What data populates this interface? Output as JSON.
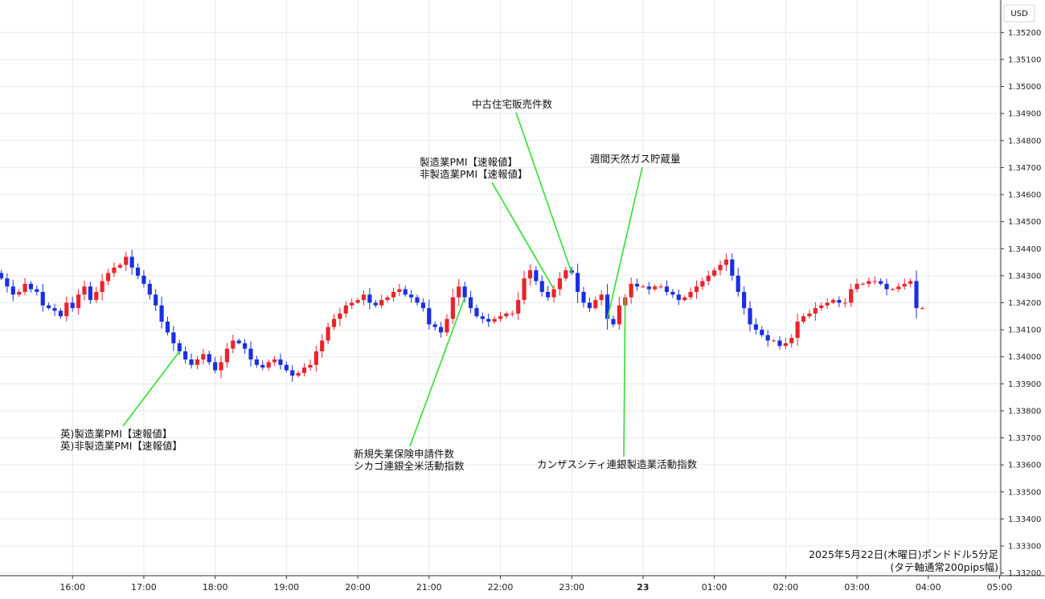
{
  "chart_data": {
    "type": "candlestick",
    "currency": "USD",
    "ylim": [
      1.3319,
      1.3532
    ],
    "y_ticks": [
      "1.35200",
      "1.35100",
      "1.35000",
      "1.34900",
      "1.34800",
      "1.34700",
      "1.34600",
      "1.34500",
      "1.34400",
      "1.34300",
      "1.34200",
      "1.34100",
      "1.34000",
      "1.33900",
      "1.33800",
      "1.33700",
      "1.33600",
      "1.33500",
      "1.33400",
      "1.33300",
      "1.33200"
    ],
    "x_ticks": [
      {
        "label": "16:00",
        "minute": 960
      },
      {
        "label": "17:00",
        "minute": 1020
      },
      {
        "label": "18:00",
        "minute": 1080
      },
      {
        "label": "19:00",
        "minute": 1140
      },
      {
        "label": "20:00",
        "minute": 1200
      },
      {
        "label": "21:00",
        "minute": 1260
      },
      {
        "label": "22:00",
        "minute": 1320
      },
      {
        "label": "23:00",
        "minute": 1380
      },
      {
        "label": "23",
        "minute": 1440
      },
      {
        "label": "01:00",
        "minute": 1500
      },
      {
        "label": "02:00",
        "minute": 1560
      },
      {
        "label": "03:00",
        "minute": 1620
      },
      {
        "label": "04:00",
        "minute": 1680
      },
      {
        "label": "05:00",
        "minute": 1740
      }
    ],
    "x_range_minutes": [
      899,
      1741
    ],
    "bar_interval_minutes": 5,
    "start_minute": 900,
    "close_series": [
      1.3429,
      1.3426,
      1.3423,
      1.3424,
      1.3427,
      1.3425,
      1.3424,
      1.3419,
      1.3418,
      1.3417,
      1.3415,
      1.342,
      1.3418,
      1.3423,
      1.3426,
      1.3421,
      1.3424,
      1.3428,
      1.3431,
      1.3433,
      1.3434,
      1.3437,
      1.3433,
      1.343,
      1.3427,
      1.3423,
      1.3419,
      1.3413,
      1.3409,
      1.3405,
      1.3402,
      1.3399,
      1.3397,
      1.3399,
      1.3401,
      1.3398,
      1.3395,
      1.3398,
      1.3403,
      1.3406,
      1.3405,
      1.3403,
      1.3399,
      1.3397,
      1.3396,
      1.3398,
      1.3399,
      1.3397,
      1.3395,
      1.3393,
      1.3394,
      1.3396,
      1.3397,
      1.3402,
      1.3406,
      1.3411,
      1.3414,
      1.3416,
      1.3419,
      1.342,
      1.3421,
      1.3423,
      1.342,
      1.3419,
      1.3421,
      1.3422,
      1.3424,
      1.3425,
      1.3423,
      1.3422,
      1.342,
      1.3418,
      1.3412,
      1.3411,
      1.3409,
      1.3414,
      1.3422,
      1.3426,
      1.3422,
      1.3418,
      1.3415,
      1.3414,
      1.3413,
      1.3414,
      1.3415,
      1.3416,
      1.3416,
      1.3421,
      1.3429,
      1.3432,
      1.3428,
      1.3424,
      1.3422,
      1.3425,
      1.3429,
      1.3432,
      1.3431,
      1.3424,
      1.342,
      1.3418,
      1.3421,
      1.3423,
      1.3414,
      1.3412,
      1.3419,
      1.3422,
      1.3427,
      1.3426,
      1.3426,
      1.3425,
      1.3426,
      1.3426,
      1.3424,
      1.3423,
      1.3421,
      1.3422,
      1.3424,
      1.3426,
      1.3428,
      1.343,
      1.3432,
      1.3434,
      1.3436,
      1.343,
      1.3424,
      1.3418,
      1.3412,
      1.341,
      1.3408,
      1.3406,
      1.3406,
      1.3404,
      1.3405,
      1.3407,
      1.3413,
      1.3415,
      1.3416,
      1.3418,
      1.3419,
      1.342,
      1.3421,
      1.342,
      1.342,
      1.3425,
      1.3427,
      1.3427,
      1.3428,
      1.3428,
      1.3427,
      1.3425,
      1.3425,
      1.3426,
      1.3427,
      1.3428,
      1.3418,
      1.3418
    ],
    "annotations": [
      {
        "lines": [
          "英)製造業PMI【速報値】",
          "英)非製造業PMI【速報値】"
        ],
        "time_minute": 1050
      },
      {
        "lines": [
          "新規失業保険申請件数",
          "シカゴ連銀全米活動指数"
        ],
        "time_minute": 1290
      },
      {
        "lines": [
          "製造業PMI【速報値】",
          "非製造業PMI【速報値】"
        ],
        "time_minute": 1365
      },
      {
        "lines": [
          "中古住宅販売件数"
        ],
        "time_minute": 1380
      },
      {
        "lines": [
          "週間天然ガス貯蔵量"
        ],
        "time_minute": 1410
      },
      {
        "lines": [
          "カンザスシティ連銀製造業活動指数"
        ],
        "time_minute": 1425
      }
    ],
    "caption_lines": [
      "2025年5月22日(木曜日)ポンドドル5分足",
      "(タテ軸通常200pips幅)"
    ],
    "colors": {
      "up": "#e8242c",
      "down": "#1a2fe0",
      "annotation_line": "#2ee02e",
      "grid": "#e6eaf0"
    }
  }
}
